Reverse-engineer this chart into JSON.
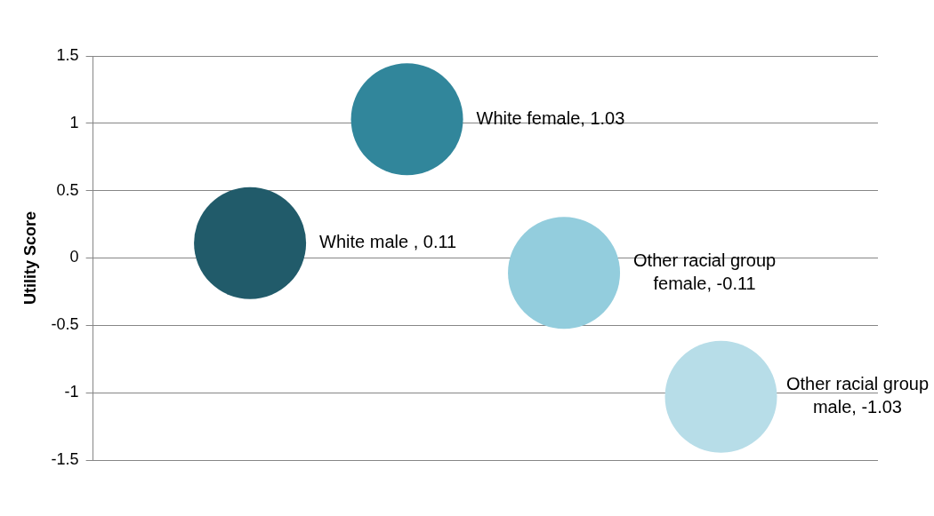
{
  "chart_data": {
    "type": "bubble",
    "ylabel": "Utility Score",
    "categories": [
      null,
      null,
      null,
      null
    ],
    "values": [
      0.11,
      1.03,
      -0.11,
      -1.03
    ],
    "sizes": [
      1,
      1,
      1,
      1
    ],
    "colors": [
      "#215b6a",
      "#31869b",
      "#93cddd",
      "#b7dde8"
    ],
    "value_labels": [
      "White male , 0.11",
      "White female, 1.03",
      "Other racial group female, -0.11",
      "Other racial group male, -1.03"
    ],
    "ylim": [
      -1.5,
      1.5
    ],
    "yticks": [
      -1.5,
      -1,
      -0.5,
      0,
      0.5,
      1,
      1.5
    ],
    "grid": "y",
    "tick_labels": "y",
    "legend": false
  }
}
